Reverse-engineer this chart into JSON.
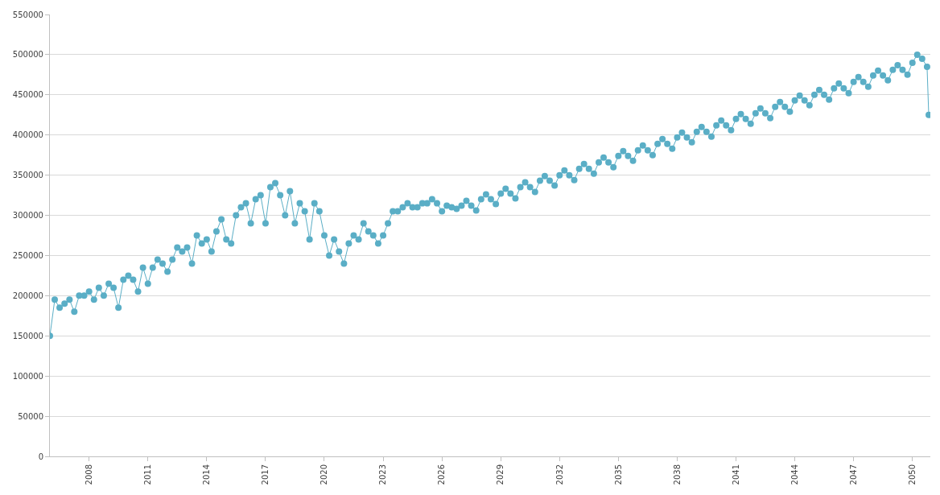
{
  "chart_data": {
    "type": "line",
    "marker": "circle",
    "line_style": "solid",
    "grid": "y",
    "legend": false,
    "xlim": [
      "2006-01",
      "2050-12"
    ],
    "xticks": [
      "2008",
      "2011",
      "2014",
      "2017",
      "2020",
      "2023",
      "2026",
      "2029",
      "2032",
      "2035",
      "2038",
      "2041",
      "2044",
      "2047",
      "2050"
    ],
    "ylim": [
      0,
      550000
    ],
    "yticks": [
      0,
      50000,
      100000,
      150000,
      200000,
      250000,
      300000,
      350000,
      400000,
      450000,
      500000,
      550000
    ],
    "series": [
      {
        "color": "#5aaec6",
        "x": [
          "2006-01",
          "2006-04",
          "2006-07",
          "2006-10",
          "2007-01",
          "2007-04",
          "2007-07",
          "2007-10",
          "2008-01",
          "2008-04",
          "2008-07",
          "2008-10",
          "2009-01",
          "2009-04",
          "2009-07",
          "2009-10",
          "2010-01",
          "2010-04",
          "2010-07",
          "2010-10",
          "2011-01",
          "2011-04",
          "2011-07",
          "2011-10",
          "2012-01",
          "2012-04",
          "2012-07",
          "2012-10",
          "2013-01",
          "2013-04",
          "2013-07",
          "2013-10",
          "2014-01",
          "2014-04",
          "2014-07",
          "2014-10",
          "2015-01",
          "2015-04",
          "2015-07",
          "2015-10",
          "2016-01",
          "2016-04",
          "2016-07",
          "2016-10",
          "2017-01",
          "2017-04",
          "2017-07",
          "2017-10",
          "2018-01",
          "2018-04",
          "2018-07",
          "2018-10",
          "2019-01",
          "2019-04",
          "2019-07",
          "2019-10",
          "2020-01",
          "2020-04",
          "2020-07",
          "2020-10",
          "2021-01",
          "2021-04",
          "2021-07",
          "2021-10",
          "2022-01",
          "2022-04",
          "2022-07",
          "2022-10",
          "2023-01",
          "2023-04",
          "2023-07",
          "2023-10",
          "2024-01",
          "2024-04",
          "2024-07",
          "2024-10",
          "2025-01",
          "2025-04",
          "2025-07",
          "2025-10",
          "2026-01",
          "2026-04",
          "2026-07",
          "2026-10",
          "2027-01",
          "2027-04",
          "2027-07",
          "2027-10",
          "2028-01",
          "2028-04",
          "2028-07",
          "2028-10",
          "2029-01",
          "2029-04",
          "2029-07",
          "2029-10",
          "2030-01",
          "2030-04",
          "2030-07",
          "2030-10",
          "2031-01",
          "2031-04",
          "2031-07",
          "2031-10",
          "2032-01",
          "2032-04",
          "2032-07",
          "2032-10",
          "2033-01",
          "2033-04",
          "2033-07",
          "2033-10",
          "2034-01",
          "2034-04",
          "2034-07",
          "2034-10",
          "2035-01",
          "2035-04",
          "2035-07",
          "2035-10",
          "2036-01",
          "2036-04",
          "2036-07",
          "2036-10",
          "2037-01",
          "2037-04",
          "2037-07",
          "2037-10",
          "2038-01",
          "2038-04",
          "2038-07",
          "2038-10",
          "2039-01",
          "2039-04",
          "2039-07",
          "2039-10",
          "2040-01",
          "2040-04",
          "2040-07",
          "2040-10",
          "2041-01",
          "2041-04",
          "2041-07",
          "2041-10",
          "2042-01",
          "2042-04",
          "2042-07",
          "2042-10",
          "2043-01",
          "2043-04",
          "2043-07",
          "2043-10",
          "2044-01",
          "2044-04",
          "2044-07",
          "2044-10",
          "2045-01",
          "2045-04",
          "2045-07",
          "2045-10",
          "2046-01",
          "2046-04",
          "2046-07",
          "2046-10",
          "2047-01",
          "2047-04",
          "2047-07",
          "2047-10",
          "2048-01",
          "2048-04",
          "2048-07",
          "2048-10",
          "2049-01",
          "2049-04",
          "2049-07",
          "2049-10",
          "2050-01",
          "2050-04",
          "2050-07",
          "2050-10",
          "2050-11"
        ],
        "values": [
          150000,
          195000,
          185000,
          190000,
          195000,
          180000,
          200000,
          200000,
          205000,
          195000,
          210000,
          200000,
          215000,
          210000,
          185000,
          220000,
          225000,
          220000,
          205000,
          235000,
          215000,
          235000,
          245000,
          240000,
          230000,
          245000,
          260000,
          255000,
          260000,
          240000,
          275000,
          265000,
          270000,
          255000,
          280000,
          295000,
          270000,
          265000,
          300000,
          310000,
          315000,
          290000,
          320000,
          325000,
          290000,
          335000,
          340000,
          325000,
          300000,
          330000,
          290000,
          315000,
          305000,
          270000,
          315000,
          305000,
          275000,
          250000,
          270000,
          255000,
          240000,
          265000,
          275000,
          270000,
          290000,
          280000,
          275000,
          265000,
          275000,
          290000,
          305000,
          305000,
          310000,
          315000,
          310000,
          310000,
          315000,
          315000,
          320000,
          315000,
          305000,
          312000,
          310000,
          308000,
          312000,
          318000,
          312000,
          306000,
          320000,
          326000,
          320000,
          314000,
          327000,
          333000,
          327000,
          321000,
          335000,
          341000,
          335000,
          329000,
          343000,
          349000,
          343000,
          337000,
          350000,
          356000,
          350000,
          344000,
          358000,
          364000,
          358000,
          352000,
          366000,
          372000,
          366000,
          360000,
          374000,
          380000,
          374000,
          368000,
          381000,
          387000,
          381000,
          375000,
          389000,
          395000,
          389000,
          383000,
          397000,
          403000,
          397000,
          391000,
          404000,
          410000,
          404000,
          398000,
          412000,
          418000,
          412000,
          406000,
          420000,
          426000,
          420000,
          414000,
          427000,
          433000,
          427000,
          421000,
          435000,
          441000,
          435000,
          429000,
          443000,
          449000,
          443000,
          437000,
          450000,
          456000,
          450000,
          444000,
          458000,
          464000,
          458000,
          452000,
          466000,
          472000,
          466000,
          460000,
          474000,
          480000,
          474000,
          468000,
          481000,
          487000,
          481000,
          475000,
          490000,
          500000,
          495000,
          485000,
          425000
        ]
      }
    ]
  }
}
